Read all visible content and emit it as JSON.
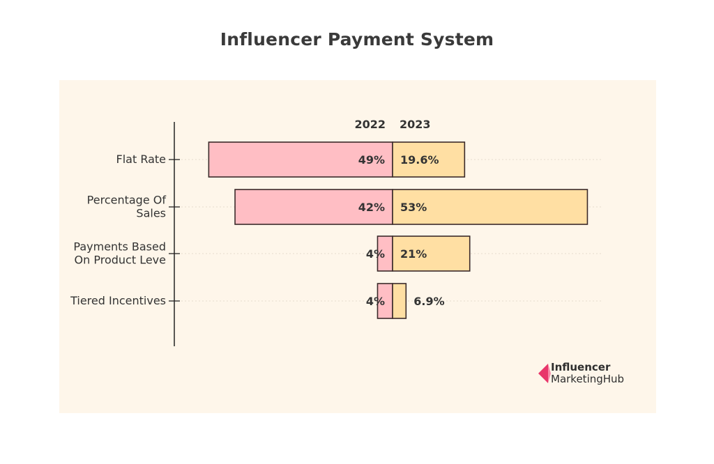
{
  "title": "Influencer Payment System",
  "logo": {
    "line1": "Influencer",
    "line2a": "Marketing",
    "line2b": "Hub",
    "icon": "influencer-marketing-hub-logo-icon"
  },
  "colors": {
    "panel": "#fef6ea",
    "series_2022": "#ffbec4",
    "series_2023": "#ffdfa3",
    "stroke": "#3a2a2a",
    "logo_pink": "#e8366a",
    "logo_pink_light": "#f58aa8"
  },
  "chart_data": {
    "type": "bar",
    "orientation": "horizontal-diverging",
    "title": "Influencer Payment System",
    "xlabel": "",
    "ylabel": "",
    "grid": "dotted horizontal",
    "categories": [
      "Flat Rate",
      "Percentage Of Sales",
      "Payments Based On Product Leve",
      "Tiered Incentives"
    ],
    "category_lines": [
      [
        "Flat Rate"
      ],
      [
        "Percentage Of",
        "Sales"
      ],
      [
        "Payments Based",
        "On Product Leve"
      ],
      [
        "Tiered Incentives"
      ]
    ],
    "series": [
      {
        "name": "2022",
        "direction": "left",
        "values": [
          49,
          42,
          4,
          4
        ],
        "labels": [
          "49%",
          "42%",
          "4%",
          "4%"
        ]
      },
      {
        "name": "2023",
        "direction": "right",
        "values": [
          19.6,
          53,
          21,
          6.9
        ],
        "labels": [
          "19.6%",
          "53%",
          "21%",
          "6.9%"
        ]
      }
    ]
  }
}
